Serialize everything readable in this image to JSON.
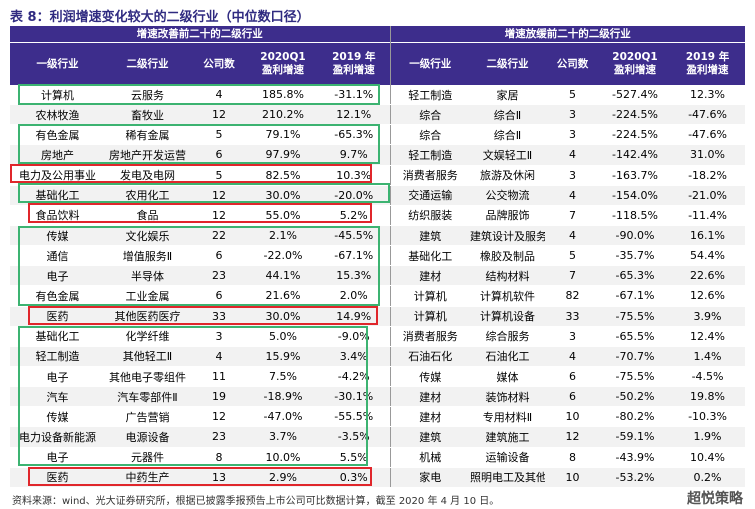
{
  "title": "表 8：利润增速变化较大的二级行业（中位数口径）",
  "table": {
    "left": {
      "group": "增速改善前二十的二级行业",
      "columns": [
        [
          "一级行业"
        ],
        [
          "二级行业"
        ],
        [
          "公司数"
        ],
        [
          "2020Q1",
          "盈利增速"
        ],
        [
          "2019 年",
          "盈利增速"
        ]
      ],
      "rows": [
        [
          "计算机",
          "云服务",
          "4",
          "185.8%",
          "-31.1%"
        ],
        [
          "农林牧渔",
          "畜牧业",
          "12",
          "210.2%",
          "12.1%"
        ],
        [
          "有色金属",
          "稀有金属",
          "5",
          "79.1%",
          "-65.3%"
        ],
        [
          "房地产",
          "房地产开发运营",
          "6",
          "97.9%",
          "9.7%"
        ],
        [
          "电力及公用事业",
          "发电及电网",
          "5",
          "82.5%",
          "10.3%"
        ],
        [
          "基础化工",
          "农用化工",
          "12",
          "30.0%",
          "-20.0%"
        ],
        [
          "食品饮料",
          "食品",
          "12",
          "55.0%",
          "5.2%"
        ],
        [
          "传媒",
          "文化娱乐",
          "22",
          "2.1%",
          "-45.5%"
        ],
        [
          "通信",
          "增值服务Ⅱ",
          "6",
          "-22.0%",
          "-67.1%"
        ],
        [
          "电子",
          "半导体",
          "23",
          "44.1%",
          "15.3%"
        ],
        [
          "有色金属",
          "工业金属",
          "6",
          "21.6%",
          "2.0%"
        ],
        [
          "医药",
          "其他医药医疗",
          "33",
          "30.0%",
          "14.9%"
        ],
        [
          "基础化工",
          "化学纤维",
          "3",
          "5.0%",
          "-9.0%"
        ],
        [
          "轻工制造",
          "其他轻工Ⅱ",
          "4",
          "15.9%",
          "3.4%"
        ],
        [
          "电子",
          "其他电子零组件",
          "11",
          "7.5%",
          "-4.2%"
        ],
        [
          "汽车",
          "汽车零部件Ⅱ",
          "19",
          "-18.9%",
          "-30.1%"
        ],
        [
          "传媒",
          "广告营销",
          "12",
          "-47.0%",
          "-55.5%"
        ],
        [
          "电力设备新能源",
          "电源设备",
          "23",
          "3.7%",
          "-3.5%"
        ],
        [
          "电子",
          "元器件",
          "8",
          "10.0%",
          "5.5%"
        ],
        [
          "医药",
          "中药生产",
          "13",
          "2.9%",
          "0.3%"
        ]
      ]
    },
    "right": {
      "group": "增速放缓前二十的二级行业",
      "columns": [
        [
          "一级行业"
        ],
        [
          "二级行业"
        ],
        [
          "公司数"
        ],
        [
          "2020Q1",
          "盈利增速"
        ],
        [
          "2019 年",
          "盈利增速"
        ]
      ],
      "rows": [
        [
          "轻工制造",
          "家居",
          "5",
          "-527.4%",
          "12.3%"
        ],
        [
          "综合",
          "综合Ⅱ",
          "3",
          "-224.5%",
          "-47.6%"
        ],
        [
          "综合",
          "综合Ⅱ",
          "3",
          "-224.5%",
          "-47.6%"
        ],
        [
          "轻工制造",
          "文娱轻工Ⅱ",
          "4",
          "-142.4%",
          "31.0%"
        ],
        [
          "消费者服务",
          "旅游及休闲",
          "3",
          "-163.7%",
          "-18.2%"
        ],
        [
          "交通运输",
          "公交物流",
          "4",
          "-154.0%",
          "-21.0%"
        ],
        [
          "纺织服装",
          "品牌服饰",
          "7",
          "-118.5%",
          "-11.4%"
        ],
        [
          "建筑",
          "建筑设计及服务",
          "4",
          "-90.0%",
          "16.1%"
        ],
        [
          "基础化工",
          "橡胶及制品",
          "5",
          "-35.7%",
          "54.4%"
        ],
        [
          "建材",
          "结构材料",
          "7",
          "-65.3%",
          "22.6%"
        ],
        [
          "计算机",
          "计算机软件",
          "82",
          "-67.1%",
          "12.6%"
        ],
        [
          "计算机",
          "计算机设备",
          "33",
          "-75.5%",
          "3.9%"
        ],
        [
          "消费者服务",
          "综合服务",
          "3",
          "-65.5%",
          "12.4%"
        ],
        [
          "石油石化",
          "石油化工",
          "4",
          "-70.7%",
          "1.4%"
        ],
        [
          "传媒",
          "媒体",
          "6",
          "-75.5%",
          "-4.5%"
        ],
        [
          "建材",
          "装饰材料",
          "6",
          "-50.2%",
          "19.8%"
        ],
        [
          "建材",
          "专用材料Ⅱ",
          "10",
          "-80.2%",
          "-10.3%"
        ],
        [
          "建筑",
          "建筑施工",
          "12",
          "-59.1%",
          "1.9%"
        ],
        [
          "机械",
          "运输设备",
          "8",
          "-43.9%",
          "10.4%"
        ],
        [
          "家电",
          "照明电工及其他",
          "10",
          "-53.2%",
          "0.2%"
        ]
      ]
    }
  },
  "source": "资料来源：wind、光大证券研究所，根据已披露季报预告上市公司可比数据计算，截至 2020 年 4 月 10 日。",
  "watermark": "超悦策略"
}
